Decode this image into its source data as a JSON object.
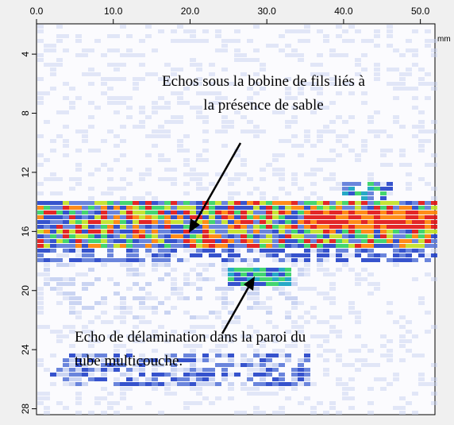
{
  "chart_data": {
    "type": "bscan",
    "x_unit": "mm",
    "xlim": [
      0,
      51.9
    ],
    "xticks": [
      {
        "value": 0,
        "label": "0.0"
      },
      {
        "value": 10,
        "label": "10.0"
      },
      {
        "value": 20,
        "label": "20.0"
      },
      {
        "value": 30,
        "label": "30.0"
      },
      {
        "value": 40,
        "label": "40.0"
      },
      {
        "value": 50,
        "label": "50.0"
      }
    ],
    "ylim": [
      1.95,
      28.4
    ],
    "yticks": [
      4,
      8,
      12,
      16,
      20,
      24,
      28
    ],
    "annotations": [
      {
        "lines": [
          "Echos sous la bobine de fils liés à",
          "la présence de sable"
        ]
      },
      {
        "lines": [
          "Echo de délamination dans la paroi du",
          "tube multicouche."
        ]
      }
    ]
  }
}
